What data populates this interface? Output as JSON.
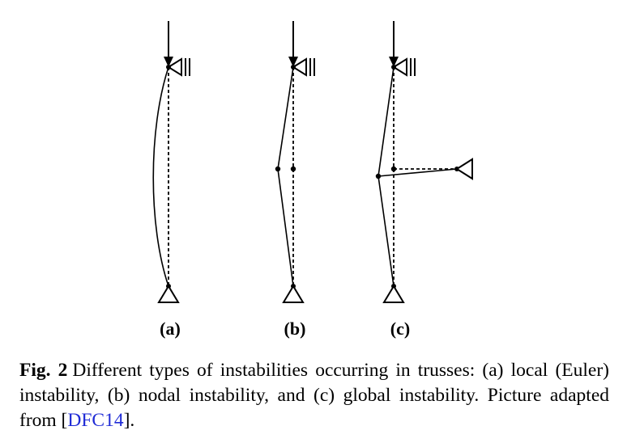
{
  "panels": [
    {
      "id": "a",
      "label": "(a)",
      "type": "local (Euler) instability"
    },
    {
      "id": "b",
      "label": "(b)",
      "type": "nodal instability"
    },
    {
      "id": "c",
      "label": "(c)",
      "type": "global instability"
    }
  ],
  "caption": {
    "figure_number": "Fig. 2",
    "text_before_cite": "Different types of instabilities occurring in trusses: (a) local (Euler) instability, (b) nodal instability, and (c) global instability. Picture adapted from [",
    "cite": "DFC14",
    "text_after_cite": "]."
  },
  "colors": {
    "line": "#000000",
    "citation_link": "#1f2bd6"
  }
}
